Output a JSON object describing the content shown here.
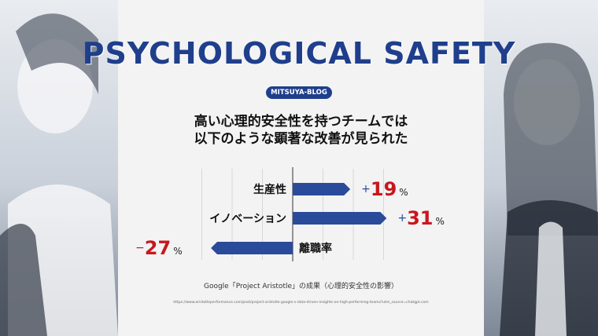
{
  "header": {
    "title": "PSYCHOLOGICAL SAFETY",
    "badge": "MITSUYA-BLOG",
    "subtitle_line1": "高い心理的安全性を持つチームでは",
    "subtitle_line2": "以下のような顕著な改善が見られた"
  },
  "chart_data": {
    "type": "bar",
    "orientation": "horizontal",
    "categories": [
      "生産性",
      "イノベーション",
      "離職率"
    ],
    "values": [
      19,
      31,
      -27
    ],
    "value_labels": [
      {
        "sign": "+",
        "number": "19",
        "unit": "%"
      },
      {
        "sign": "+",
        "number": "31",
        "unit": "%"
      },
      {
        "sign": "−",
        "number": "27",
        "unit": "%"
      }
    ],
    "xlim": [
      -35,
      35
    ],
    "grid": true,
    "colors": {
      "bar": "#2a4a9a",
      "value": "#c8171e",
      "sign_positive": "#2a4a9a",
      "sign_negative": "#c8171e"
    }
  },
  "footer": {
    "caption": "Google「Project Aristotle」の成果（心理的安全性の影響）",
    "source": "https://www.aristotleperformance.com/post/project-aristotle-google-s-data-driven-insights-on-high-performing-teams?utm_source=chatgpt.com"
  }
}
